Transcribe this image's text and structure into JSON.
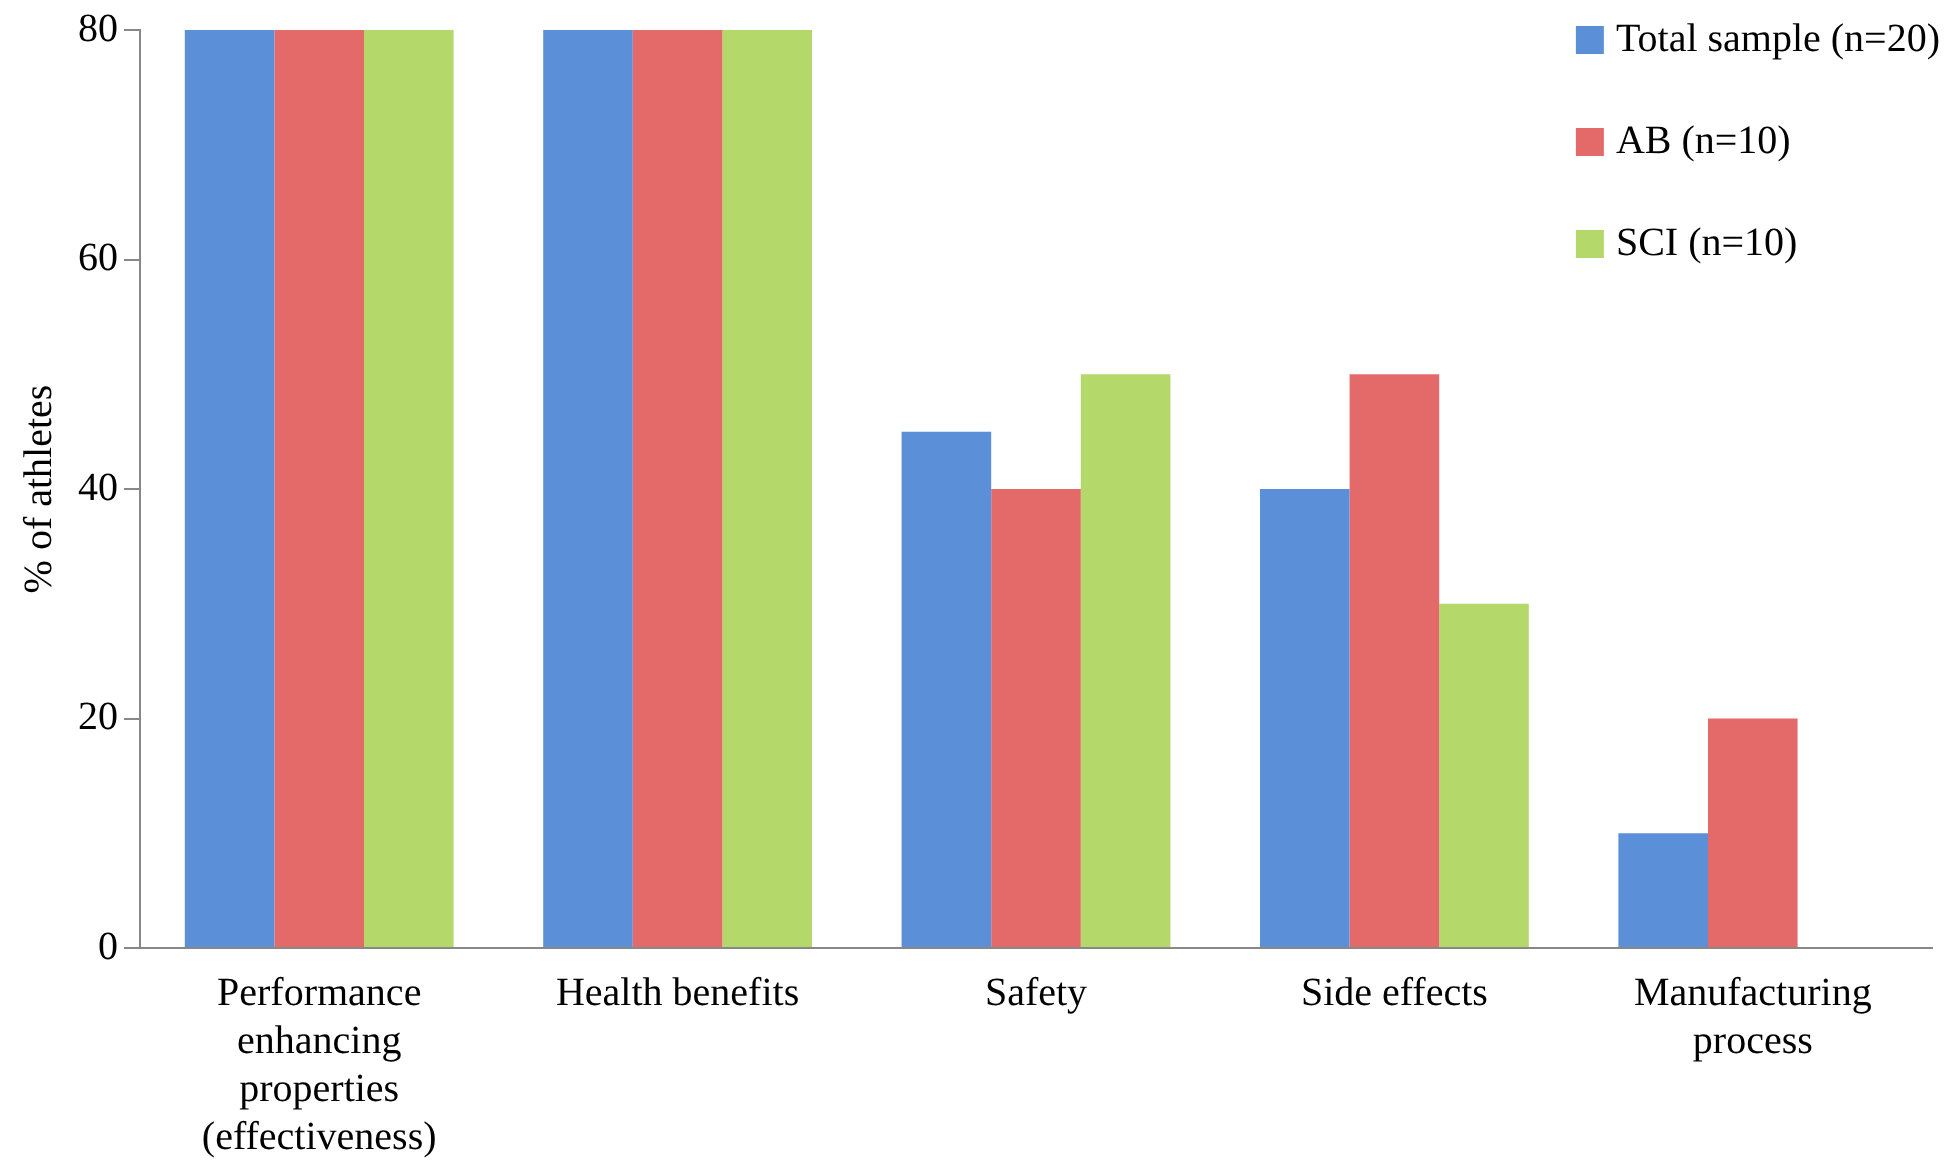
{
  "chart_data": {
    "type": "bar",
    "ylabel": "% of athletes",
    "categories": [
      "Performance enhancing properties (effectiveness)",
      "Health benefits",
      "Safety",
      "Side effects",
      "Manufacturing process"
    ],
    "series": [
      {
        "name": "Total sample (n=20)",
        "color": "#5b8fd8",
        "values": [
          80,
          80,
          45,
          40,
          10
        ]
      },
      {
        "name": "AB (n=10)",
        "color": "#e46a6a",
        "values": [
          80,
          80,
          40,
          50,
          20
        ]
      },
      {
        "name": "SCI (n=10)",
        "color": "#b5d86a",
        "values": [
          80,
          80,
          50,
          30,
          0
        ]
      }
    ],
    "ylim": [
      0,
      80
    ],
    "yticks": [
      0,
      20,
      40,
      60,
      80
    ],
    "grid": false,
    "legend": "top right"
  }
}
